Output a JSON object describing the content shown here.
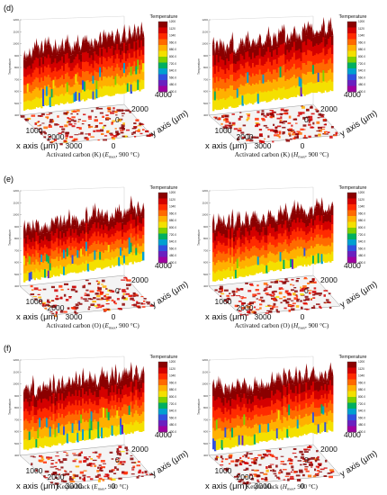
{
  "chart_data": {
    "type": "surface3d",
    "figure_rows": [
      {
        "label": "(d)",
        "material": "Activated carbon (K)"
      },
      {
        "label": "(e)",
        "material": "Activated carbon (O)"
      },
      {
        "label": "(f)",
        "material": "Ketjen black"
      }
    ],
    "panels": [
      {
        "row": 0,
        "col": 0,
        "caption": "Activated carbon (K) (E_max, 900 °C)",
        "caption_main": "Activated carbon (K) (",
        "caption_var": "E",
        "caption_sub": "max",
        "caption_tail": ", 900 °C)",
        "xlabel": "x axis (μm)",
        "ylabel": "y axis (μm)",
        "zlabel": "Temperature",
        "x_ticks": [
          "1000",
          "2000",
          "3000",
          "0"
        ],
        "y_ticks": [
          "4000",
          "2000",
          "0"
        ],
        "z_ticks": [
          "1200",
          "1100",
          "1000",
          "900",
          "800",
          "700",
          "600",
          "500",
          "400"
        ],
        "colorbar_title": "Temperature",
        "colorbar_ticks": [
          "1200",
          "1120",
          "1040",
          "960.0",
          "880.0",
          "800.0",
          "720.0",
          "640.0",
          "560.0",
          "480.0",
          "400.0"
        ],
        "surface_level": 0.78,
        "dropout": 0.3
      },
      {
        "row": 0,
        "col": 1,
        "caption": "Activated carbon (K) (H_max, 900 °C)",
        "caption_main": "Activated carbon (K) (",
        "caption_var": "H",
        "caption_sub": "max",
        "caption_tail": ", 900 °C)",
        "xlabel": "x axis (μm)",
        "ylabel": "y axis (μm)",
        "zlabel": "Temperature",
        "x_ticks": [
          "1000",
          "2000",
          "3000",
          "0"
        ],
        "y_ticks": [
          "4000",
          "2000",
          "0"
        ],
        "z_ticks": [
          "1200",
          "1100",
          "1000",
          "900",
          "800",
          "700",
          "600",
          "500",
          "400"
        ],
        "colorbar_title": "Temperature",
        "colorbar_ticks": [
          "1200",
          "1120",
          "1040",
          "960.0",
          "880.0",
          "800.0",
          "720.0",
          "640.0",
          "560.0",
          "480.0",
          "400.0"
        ],
        "surface_level": 0.86,
        "dropout": 0.1
      },
      {
        "row": 1,
        "col": 0,
        "caption": "Activated carbon (O) (E_max, 900 °C)",
        "caption_main": "Activated carbon (O) (",
        "caption_var": "E",
        "caption_sub": "max",
        "caption_tail": ", 900 °C)",
        "xlabel": "x axis (μm)",
        "ylabel": "y axis (μm)",
        "zlabel": "Temperature",
        "x_ticks": [
          "1000",
          "2000",
          "3000",
          "0"
        ],
        "y_ticks": [
          "4000",
          "2000",
          "0"
        ],
        "z_ticks": [
          "1200",
          "1100",
          "1000",
          "900",
          "800",
          "700",
          "600",
          "500",
          "400"
        ],
        "colorbar_title": "Temperature",
        "colorbar_ticks": [
          "1200",
          "1120",
          "1040",
          "960.0",
          "880.0",
          "800.0",
          "720.0",
          "640.0",
          "560.0",
          "480.0",
          "400.0"
        ],
        "surface_level": 0.72,
        "dropout": 0.35
      },
      {
        "row": 1,
        "col": 1,
        "caption": "Activated carbon (O) (H_max, 900 °C)",
        "caption_main": "Activated carbon (O) (",
        "caption_var": "H",
        "caption_sub": "max",
        "caption_tail": ", 900 °C)",
        "xlabel": "x axis (μm)",
        "ylabel": "y axis (μm)",
        "zlabel": "Temperature",
        "x_ticks": [
          "1000",
          "2000",
          "3000",
          "0"
        ],
        "y_ticks": [
          "4000",
          "2000",
          "0"
        ],
        "z_ticks": [
          "1200",
          "1100",
          "1000",
          "900",
          "800",
          "700",
          "600",
          "500",
          "400"
        ],
        "colorbar_title": "Temperature",
        "colorbar_ticks": [
          "1200",
          "1120",
          "1040",
          "960.0",
          "880.0",
          "800.0",
          "720.0",
          "640.0",
          "560.0",
          "480.0",
          "400.0"
        ],
        "surface_level": 0.74,
        "dropout": 0.12
      },
      {
        "row": 2,
        "col": 0,
        "caption": "Ketjen black (E_max, 900 °C)",
        "caption_main": "Ketjen black (",
        "caption_var": "E",
        "caption_sub": "max",
        "caption_tail": ", 900 °C)",
        "xlabel": "x axis (μm)",
        "ylabel": "y axis (μm)",
        "zlabel": "Temperature",
        "x_ticks": [
          "1000",
          "2000",
          "3000",
          "0"
        ],
        "y_ticks": [
          "4000",
          "2000",
          "0"
        ],
        "z_ticks": [
          "1200",
          "1100",
          "1000",
          "900",
          "800",
          "700",
          "600",
          "500",
          "400"
        ],
        "colorbar_title": "Temperature",
        "colorbar_ticks": [
          "1200",
          "1120",
          "1040",
          "960.0",
          "880.0",
          "800.0",
          "720.0",
          "640.0",
          "560.0",
          "480.0",
          "400.0"
        ],
        "surface_level": 0.8,
        "dropout": 0.45
      },
      {
        "row": 2,
        "col": 1,
        "caption": "Ketjen black (H_max, 900 °C)",
        "caption_main": "Ketjen black (",
        "caption_var": "H",
        "caption_sub": "max",
        "caption_tail": ", 900 °C)",
        "xlabel": "x axis (μm)",
        "ylabel": "y axis (μm)",
        "zlabel": "Temperature",
        "x_ticks": [
          "1000",
          "2000",
          "3000",
          "0"
        ],
        "y_ticks": [
          "4000",
          "2000",
          "0"
        ],
        "z_ticks": [
          "1200",
          "1100",
          "1000",
          "900",
          "800",
          "700",
          "600",
          "500",
          "400"
        ],
        "colorbar_title": "Temperature",
        "colorbar_ticks": [
          "1200",
          "1120",
          "1040",
          "960.0",
          "880.0",
          "800.0",
          "720.0",
          "640.0",
          "560.0",
          "480.0",
          "400.0"
        ],
        "surface_level": 0.82,
        "dropout": 0.2
      }
    ],
    "colorscale": [
      "#8b0000",
      "#d40000",
      "#ff2a00",
      "#ff6a00",
      "#ffb000",
      "#f4e000",
      "#7fd000",
      "#00b060",
      "#00a0d0",
      "#3050e0",
      "#6a20c0",
      "#a000a0"
    ],
    "z_range": [
      400,
      1200
    ],
    "x_range": [
      0,
      3000
    ],
    "y_range": [
      0,
      4000
    ]
  }
}
